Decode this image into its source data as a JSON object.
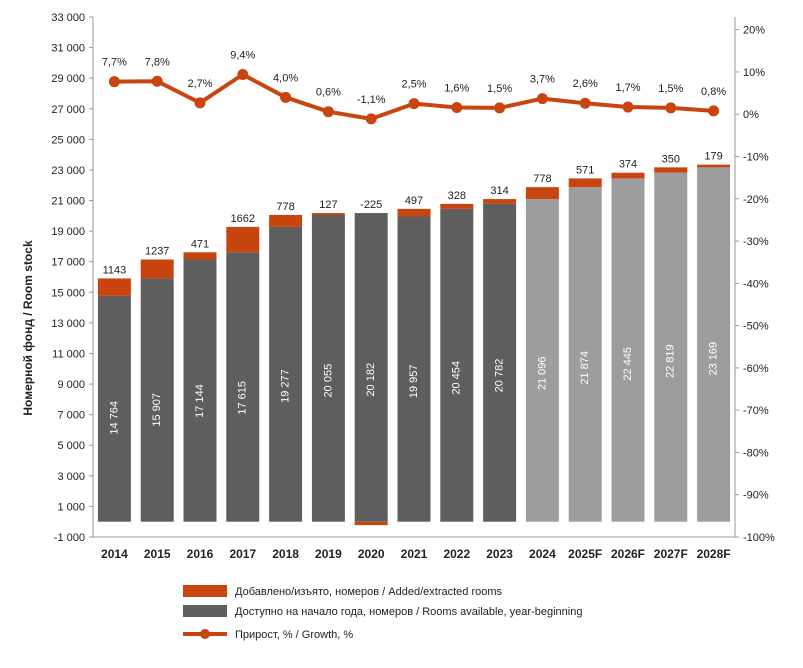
{
  "chart_data": {
    "type": "bar",
    "stacked": true,
    "categories": [
      "2014",
      "2015",
      "2016",
      "2017",
      "2018",
      "2019",
      "2020",
      "2021",
      "2022",
      "2023",
      "2024",
      "2025F",
      "2026F",
      "2027F",
      "2028F"
    ],
    "projected_from_index": 10,
    "series": [
      {
        "name": "Доступно на начало года, номеров / Rooms available, year-beginning",
        "kind": "bar",
        "values": [
          14764,
          15907,
          17144,
          17615,
          19277,
          20055,
          20182,
          19957,
          20454,
          20782,
          21096,
          21874,
          22445,
          22819,
          23169
        ],
        "labels": [
          "14 764",
          "15 907",
          "17 144",
          "17 615",
          "19 277",
          "20 055",
          "20 182",
          "19 957",
          "20 454",
          "20 782",
          "21 096",
          "21 874",
          "22 445",
          "22 819",
          "23 169"
        ]
      },
      {
        "name": "Добавлено/изъято, номеров / Added/extracted rooms",
        "kind": "bar",
        "values": [
          1143,
          1237,
          471,
          1662,
          778,
          127,
          -225,
          497,
          328,
          314,
          778,
          571,
          374,
          350,
          179
        ],
        "labels": [
          "1143",
          "1237",
          "471",
          "1662",
          "778",
          "127",
          "-225",
          "497",
          "328",
          "314",
          "778",
          "571",
          "374",
          "350",
          "179"
        ]
      },
      {
        "name": "Прирост, % / Growth, %",
        "kind": "line",
        "axis": "right",
        "values": [
          7.7,
          7.8,
          2.7,
          9.4,
          4.0,
          0.6,
          -1.1,
          2.5,
          1.6,
          1.5,
          3.7,
          2.6,
          1.7,
          1.5,
          0.8
        ],
        "labels": [
          "7,7%",
          "7,8%",
          "2,7%",
          "9,4%",
          "4,0%",
          "0,6%",
          "-1,1%",
          "2,5%",
          "1,6%",
          "1,5%",
          "3,7%",
          "2,6%",
          "1,7%",
          "1,5%",
          "0,8%"
        ]
      }
    ],
    "ylabel": "Номерной фонд / Room stock",
    "ylim": [
      -1000,
      33000
    ],
    "y_ticks": [
      "-1 000",
      "1 000",
      "3 000",
      "5 000",
      "7 000",
      "9 000",
      "11 000",
      "13 000",
      "15 000",
      "17 000",
      "19 000",
      "21 000",
      "23 000",
      "25 000",
      "27 000",
      "29 000",
      "31 000",
      "33 000"
    ],
    "y2lim": [
      -100,
      23
    ],
    "y2_ticks": [
      "-100%",
      "-90%",
      "-80%",
      "-70%",
      "-60%",
      "-50%",
      "-40%",
      "-30%",
      "-20%",
      "-10%",
      "0%",
      "10%",
      "20%"
    ],
    "grid": false,
    "legend_position": "bottom",
    "colors": {
      "base_actual": "#5e5e5e",
      "base_forecast": "#9d9d9d",
      "added": "#c94510",
      "line": "#c94510",
      "base_label": "#ffffff",
      "axis": "#9a9a9a",
      "text": "#222222"
    }
  }
}
